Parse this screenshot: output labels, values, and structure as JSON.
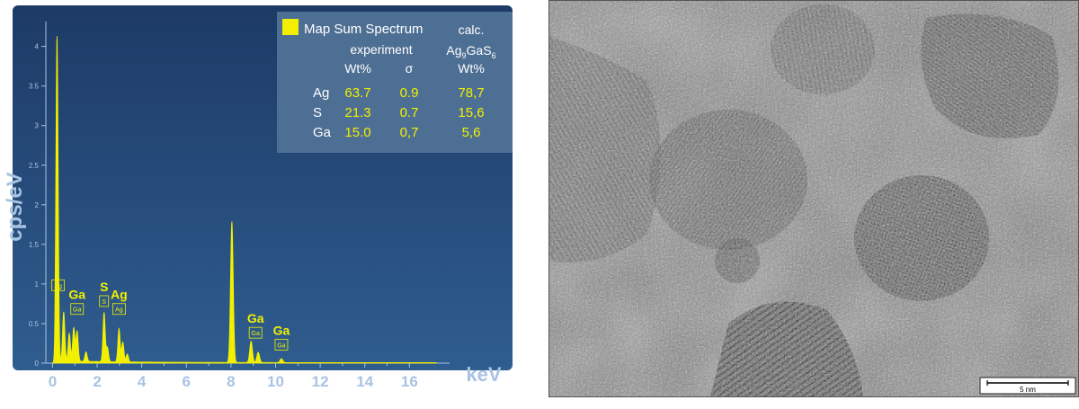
{
  "colors": {
    "plot_bg_top": "#1d3a66",
    "plot_bg_bottom": "#2f5d8f",
    "axis_text": "#a9c3e2",
    "spectrum": "#f2f000",
    "table_bg": "#4e6f94",
    "table_header_text": "#ffffff",
    "table_value_text": "#f2f000",
    "tem_base": "#7b7b7b"
  },
  "chart_data": {
    "type": "area",
    "title": "",
    "xlabel": "keV",
    "ylabel": "cps/eV",
    "xlim": [
      -0.3,
      17.8
    ],
    "ylim": [
      0,
      4.2
    ],
    "x_ticks": [
      0,
      2,
      4,
      6,
      8,
      10,
      12,
      14,
      16
    ],
    "y_ticks": [
      0,
      0.5,
      1,
      1.5,
      2,
      2.5,
      3,
      3.5,
      4
    ],
    "y_tick_labels": [
      "0",
      "0.5",
      "1",
      "1.5",
      "2",
      "2.5",
      "3",
      "3.5",
      "4"
    ],
    "grid": false,
    "series": [
      {
        "name": "Map Sum Spectrum",
        "peaks": [
          {
            "x": 0.2,
            "y": 4.1,
            "w": 0.05
          },
          {
            "x": 0.5,
            "y": 0.62,
            "w": 0.05
          },
          {
            "x": 0.75,
            "y": 0.35,
            "w": 0.05
          },
          {
            "x": 0.95,
            "y": 0.42,
            "w": 0.05
          },
          {
            "x": 1.1,
            "y": 0.38,
            "w": 0.05
          },
          {
            "x": 1.5,
            "y": 0.12,
            "w": 0.05
          },
          {
            "x": 2.31,
            "y": 0.62,
            "w": 0.05
          },
          {
            "x": 2.46,
            "y": 0.18,
            "w": 0.05
          },
          {
            "x": 2.98,
            "y": 0.42,
            "w": 0.05
          },
          {
            "x": 3.15,
            "y": 0.25,
            "w": 0.05
          },
          {
            "x": 3.35,
            "y": 0.1,
            "w": 0.05
          },
          {
            "x": 8.04,
            "y": 1.78,
            "w": 0.06
          },
          {
            "x": 8.9,
            "y": 0.27,
            "w": 0.06
          },
          {
            "x": 9.22,
            "y": 0.13,
            "w": 0.06
          },
          {
            "x": 10.26,
            "y": 0.05,
            "w": 0.06
          }
        ]
      }
    ],
    "annotations": [
      {
        "x": 0.25,
        "y": 0.95,
        "label": "",
        "box": "Ag"
      },
      {
        "x": 1.1,
        "y": 0.65,
        "label": "Ga",
        "box": "Ga"
      },
      {
        "x": 2.31,
        "y": 0.75,
        "label": "S",
        "box": "S"
      },
      {
        "x": 2.98,
        "y": 0.65,
        "label": "Ag",
        "box": "Ag"
      },
      {
        "x": 9.1,
        "y": 0.35,
        "label": "Ga",
        "box": "Ga"
      },
      {
        "x": 10.26,
        "y": 0.2,
        "label": "Ga",
        "box": "Ga"
      }
    ]
  },
  "table": {
    "legend_label": "Map Sum Spectrum",
    "experiment_header": "experiment",
    "calc_header": "calc.",
    "calc_formula": {
      "a": "Ag",
      "a_sub": "9",
      "b": "GaS",
      "b_sub": "6"
    },
    "col_wt": "Wt%",
    "col_sigma": "σ",
    "col_calc_wt": "Wt%",
    "rows": [
      {
        "element": "Ag",
        "wt": "63.7",
        "sigma": "0.9",
        "calc": "78,7"
      },
      {
        "element": "S",
        "wt": "21.3",
        "sigma": "0.7",
        "calc": "15,6"
      },
      {
        "element": "Ga",
        "wt": "15.0",
        "sigma": "0,7",
        "calc": "5,6"
      }
    ]
  },
  "tem": {
    "scale_bar_label": "5 nm"
  }
}
